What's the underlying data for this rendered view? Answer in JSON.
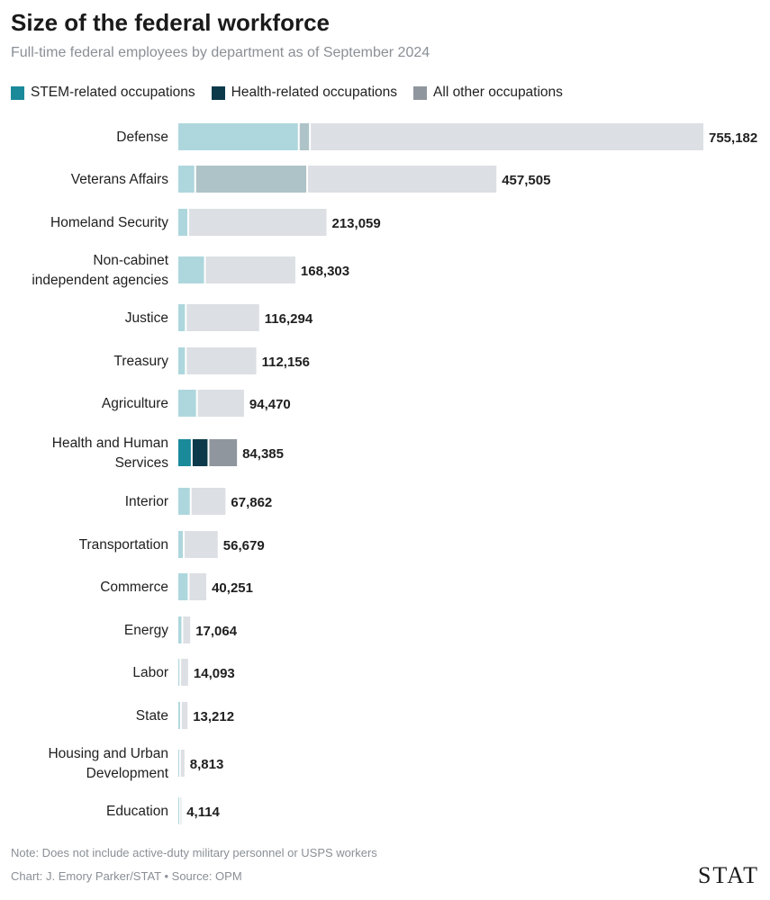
{
  "header": {
    "title": "Size of the federal workforce",
    "subtitle": "Full-time federal employees by department as of September 2024"
  },
  "legend": [
    {
      "label": "STEM-related occupations",
      "color": "#1a8a9a"
    },
    {
      "label": "Health-related occupations",
      "color": "#0c3a4a"
    },
    {
      "label": "All other occupations",
      "color": "#8f969e"
    }
  ],
  "colors": {
    "stem_muted": "#aed7dd",
    "health_muted": "#aec3c7",
    "other_muted": "#dcdfe3",
    "stem_active": "#1a8a9a",
    "health_active": "#0c3a4a",
    "other_active": "#8f969e"
  },
  "chart_data": {
    "type": "bar",
    "orientation": "horizontal",
    "stacked": true,
    "title": "Size of the federal workforce",
    "subtitle": "Full-time federal employees by department as of September 2024",
    "xlim": [
      0,
      755182
    ],
    "highlighted_category": "Health and Human Services",
    "categories": [
      {
        "name": "Defense",
        "lines": [
          "Defense"
        ],
        "stem": 172000,
        "health": 16000,
        "other": 567182,
        "total": 755182,
        "total_label": "755,182"
      },
      {
        "name": "Veterans Affairs",
        "lines": [
          "Veterans Affairs"
        ],
        "stem": 23000,
        "health": 161000,
        "other": 273505,
        "total": 457505,
        "total_label": "457,505"
      },
      {
        "name": "Homeland Security",
        "lines": [
          "Homeland Security"
        ],
        "stem": 13000,
        "health": 0,
        "other": 200059,
        "total": 213059,
        "total_label": "213,059"
      },
      {
        "name": "Non-cabinet independent agencies",
        "lines": [
          "Non-cabinet",
          "independent agencies"
        ],
        "stem": 37000,
        "health": 0,
        "other": 131303,
        "total": 168303,
        "total_label": "168,303"
      },
      {
        "name": "Justice",
        "lines": [
          "Justice"
        ],
        "stem": 9500,
        "health": 0,
        "other": 106794,
        "total": 116294,
        "total_label": "116,294"
      },
      {
        "name": "Treasury",
        "lines": [
          "Treasury"
        ],
        "stem": 9500,
        "health": 0,
        "other": 102656,
        "total": 112156,
        "total_label": "112,156"
      },
      {
        "name": "Agriculture",
        "lines": [
          "Agriculture"
        ],
        "stem": 25500,
        "health": 0,
        "other": 68970,
        "total": 94470,
        "total_label": "94,470"
      },
      {
        "name": "Health and Human Services",
        "lines": [
          "Health and Human",
          "Services"
        ],
        "stem": 18000,
        "health": 24000,
        "other": 42385,
        "total": 84385,
        "total_label": "84,385"
      },
      {
        "name": "Interior",
        "lines": [
          "Interior"
        ],
        "stem": 16500,
        "health": 0,
        "other": 51362,
        "total": 67862,
        "total_label": "67,862"
      },
      {
        "name": "Transportation",
        "lines": [
          "Transportation"
        ],
        "stem": 6500,
        "health": 0,
        "other": 50179,
        "total": 56679,
        "total_label": "56,679"
      },
      {
        "name": "Commerce",
        "lines": [
          "Commerce"
        ],
        "stem": 13500,
        "health": 0,
        "other": 26751,
        "total": 40251,
        "total_label": "40,251"
      },
      {
        "name": "Energy",
        "lines": [
          "Energy"
        ],
        "stem": 4500,
        "health": 0,
        "other": 12564,
        "total": 17064,
        "total_label": "17,064"
      },
      {
        "name": "Labor",
        "lines": [
          "Labor"
        ],
        "stem": 1500,
        "health": 0,
        "other": 12593,
        "total": 14093,
        "total_label": "14,093"
      },
      {
        "name": "State",
        "lines": [
          "State"
        ],
        "stem": 2500,
        "health": 0,
        "other": 10712,
        "total": 13212,
        "total_label": "13,212"
      },
      {
        "name": "Housing and Urban Development",
        "lines": [
          "Housing and Urban",
          "Development"
        ],
        "stem": 1000,
        "health": 0,
        "other": 7813,
        "total": 8813,
        "total_label": "8,813"
      },
      {
        "name": "Education",
        "lines": [
          "Education"
        ],
        "stem": 500,
        "health": 0,
        "other": 3614,
        "total": 4114,
        "total_label": "4,114"
      }
    ]
  },
  "footer": {
    "note": "Note: Does not include active-duty military personnel or USPS workers",
    "credit": "Chart: J. Emory Parker/STAT • Source: OPM",
    "logo": "STAT"
  }
}
